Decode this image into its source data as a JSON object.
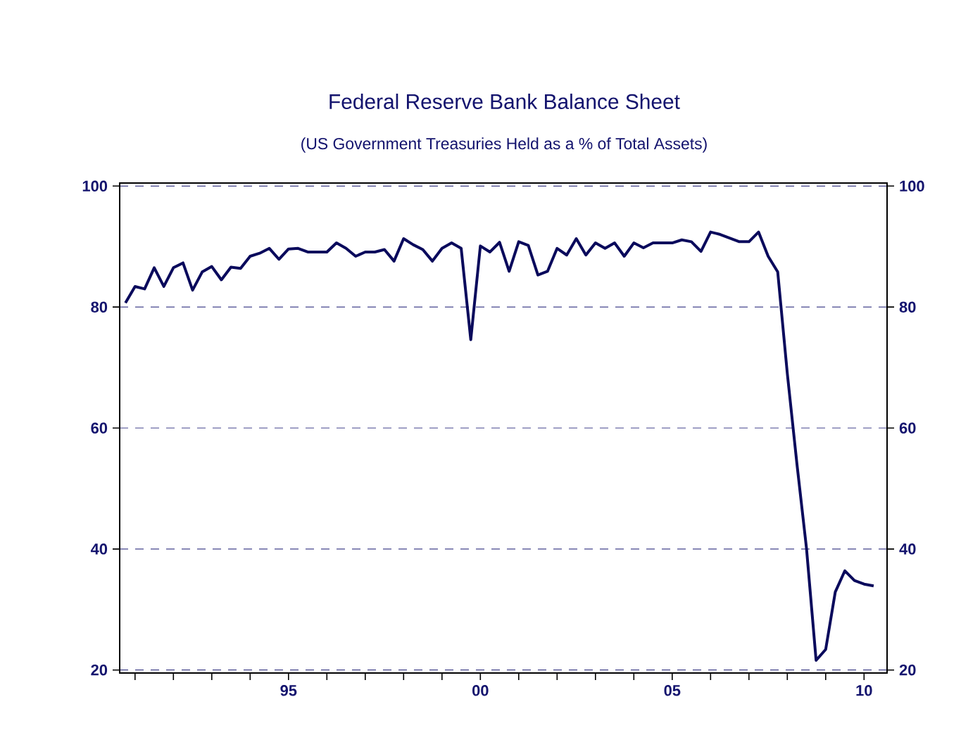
{
  "chart_data": {
    "type": "line",
    "title": "Federal Reserve Bank Balance Sheet",
    "subtitle": "(US Government Treasuries Held as a % of Total Assets)",
    "x": [
      1990.75,
      1991,
      1991.25,
      1991.5,
      1991.75,
      1992,
      1992.25,
      1992.5,
      1992.75,
      1993,
      1993.25,
      1993.5,
      1993.75,
      1994,
      1994.25,
      1994.5,
      1994.75,
      1995,
      1995.25,
      1995.5,
      1995.75,
      1996,
      1996.25,
      1996.5,
      1996.75,
      1997,
      1997.25,
      1997.5,
      1997.75,
      1998,
      1998.25,
      1998.5,
      1998.75,
      1999,
      1999.25,
      1999.5,
      1999.75,
      2000,
      2000.25,
      2000.5,
      2000.75,
      2001,
      2001.25,
      2001.5,
      2001.75,
      2002,
      2002.25,
      2002.5,
      2002.75,
      2003,
      2003.25,
      2003.5,
      2003.75,
      2004,
      2004.25,
      2004.5,
      2004.75,
      2005,
      2005.25,
      2005.5,
      2005.75,
      2006,
      2006.25,
      2006.5,
      2006.75,
      2007,
      2007.25,
      2007.5,
      2007.75,
      2008,
      2008.25,
      2008.5,
      2008.75,
      2009,
      2009.25,
      2009.5,
      2009.75,
      2010,
      2010.25
    ],
    "values": [
      80.7,
      83.4,
      83.0,
      86.5,
      83.4,
      86.5,
      87.3,
      82.8,
      85.8,
      86.7,
      84.5,
      86.6,
      86.4,
      88.4,
      88.9,
      89.7,
      87.9,
      89.6,
      89.7,
      89.1,
      89.1,
      89.1,
      90.6,
      89.7,
      88.4,
      89.1,
      89.1,
      89.5,
      87.6,
      91.3,
      90.3,
      89.5,
      87.6,
      89.7,
      90.6,
      89.7,
      74.6,
      90.1,
      89.1,
      90.7,
      85.9,
      90.8,
      90.2,
      85.3,
      85.9,
      89.7,
      88.6,
      91.3,
      88.6,
      90.6,
      89.7,
      90.6,
      88.4,
      90.6,
      89.8,
      90.6,
      90.6,
      90.6,
      91.1,
      90.8,
      89.2,
      92.4,
      92.0,
      91.4,
      90.8,
      90.8,
      92.4,
      88.4,
      85.8,
      69.0,
      54.1,
      40.1,
      21.6,
      23.4,
      32.9,
      36.4,
      34.8,
      34.2,
      33.9
    ],
    "color": "#0a0a5c",
    "line_style": "solid",
    "xlim": [
      1990.6,
      2010.6
    ],
    "xticks": [
      {
        "value": 1991,
        "label": null
      },
      {
        "value": 1992,
        "label": null
      },
      {
        "value": 1993,
        "label": null
      },
      {
        "value": 1994,
        "label": null
      },
      {
        "value": 1995,
        "label": "95"
      },
      {
        "value": 1996,
        "label": null
      },
      {
        "value": 1997,
        "label": null
      },
      {
        "value": 1998,
        "label": null
      },
      {
        "value": 1999,
        "label": null
      },
      {
        "value": 2000,
        "label": "00"
      },
      {
        "value": 2001,
        "label": null
      },
      {
        "value": 2002,
        "label": null
      },
      {
        "value": 2003,
        "label": null
      },
      {
        "value": 2004,
        "label": null
      },
      {
        "value": 2005,
        "label": "05"
      },
      {
        "value": 2006,
        "label": null
      },
      {
        "value": 2007,
        "label": null
      },
      {
        "value": 2008,
        "label": null
      },
      {
        "value": 2009,
        "label": null
      },
      {
        "value": 2010,
        "label": "10"
      }
    ],
    "ylim": [
      19.5,
      100.5
    ],
    "yticks": [
      20,
      40,
      60,
      80,
      100
    ],
    "y2lim": [
      19.5,
      100.5
    ],
    "y2ticks": [
      20,
      40,
      60,
      80,
      100
    ],
    "grid": "y"
  }
}
